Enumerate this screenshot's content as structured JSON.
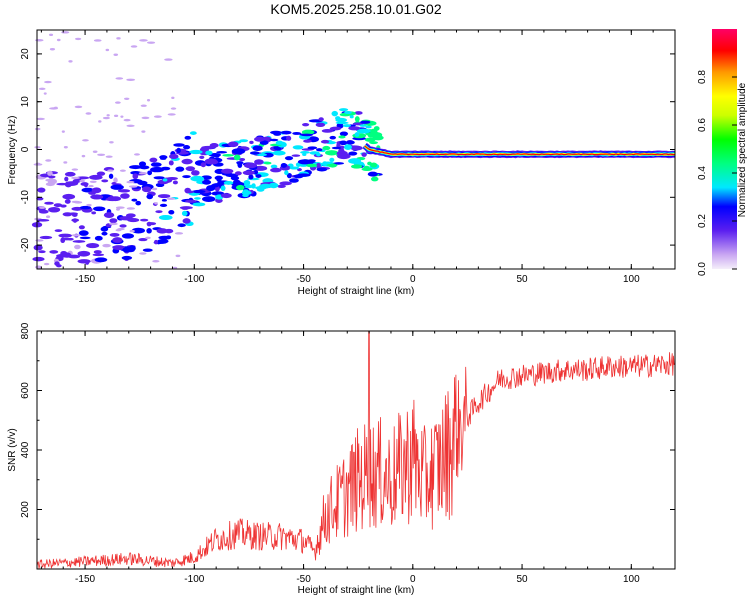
{
  "title": "KOM5.2025.258.10.01.G02",
  "chart_data": [
    {
      "type": "heatmap",
      "xlabel": "Height of straight line (km)",
      "ylabel": "Frequency (Hz)",
      "xlim": [
        -172,
        120
      ],
      "ylim": [
        -25,
        25
      ],
      "xticks": [
        -150,
        -100,
        -50,
        0,
        50,
        100
      ],
      "yticks": [
        -20,
        -10,
        0,
        10,
        20
      ],
      "colorbar": {
        "label": "Normalized spectral amplitude",
        "range": [
          0.0,
          1.0
        ],
        "ticks": [
          0.0,
          0.2,
          0.4,
          0.6,
          0.8
        ]
      },
      "ridge": {
        "x": [
          -172,
          -150,
          -125,
          -100,
          -80,
          -60,
          -45,
          -30,
          -20,
          -10,
          0,
          50,
          100,
          120
        ],
        "freq_hz": [
          -15,
          -14,
          -13,
          -6,
          -4,
          -2,
          0,
          4,
          0,
          -1,
          -1,
          -1,
          -1,
          -1
        ],
        "amplitude": [
          0.1,
          0.15,
          0.2,
          0.25,
          0.3,
          0.3,
          0.3,
          0.35,
          0.45,
          0.9,
          0.95,
          0.95,
          0.95,
          0.9
        ]
      }
    },
    {
      "type": "line",
      "xlabel": "Height of straight line (km)",
      "ylabel": "SNR (v/v)",
      "xlim": [
        -172,
        120
      ],
      "ylim": [
        0,
        800
      ],
      "xticks": [
        -150,
        -100,
        -50,
        0,
        50,
        100
      ],
      "yticks": [
        200,
        400,
        600,
        800
      ],
      "color": "#ee3333",
      "series": [
        {
          "name": "SNR",
          "x": [
            -172,
            -150,
            -130,
            -110,
            -100,
            -90,
            -80,
            -70,
            -60,
            -50,
            -45,
            -40,
            -35,
            -30,
            -25,
            -20,
            -15,
            -10,
            -5,
            0,
            5,
            10,
            15,
            20,
            30,
            40,
            50,
            60,
            70,
            80,
            90,
            100,
            110,
            120
          ],
          "values": [
            15,
            25,
            35,
            20,
            40,
            100,
            120,
            110,
            110,
            95,
            60,
            180,
            220,
            260,
            300,
            320,
            320,
            300,
            340,
            380,
            300,
            330,
            380,
            460,
            560,
            640,
            650,
            660,
            670,
            670,
            680,
            680,
            685,
            690
          ]
        }
      ]
    }
  ]
}
